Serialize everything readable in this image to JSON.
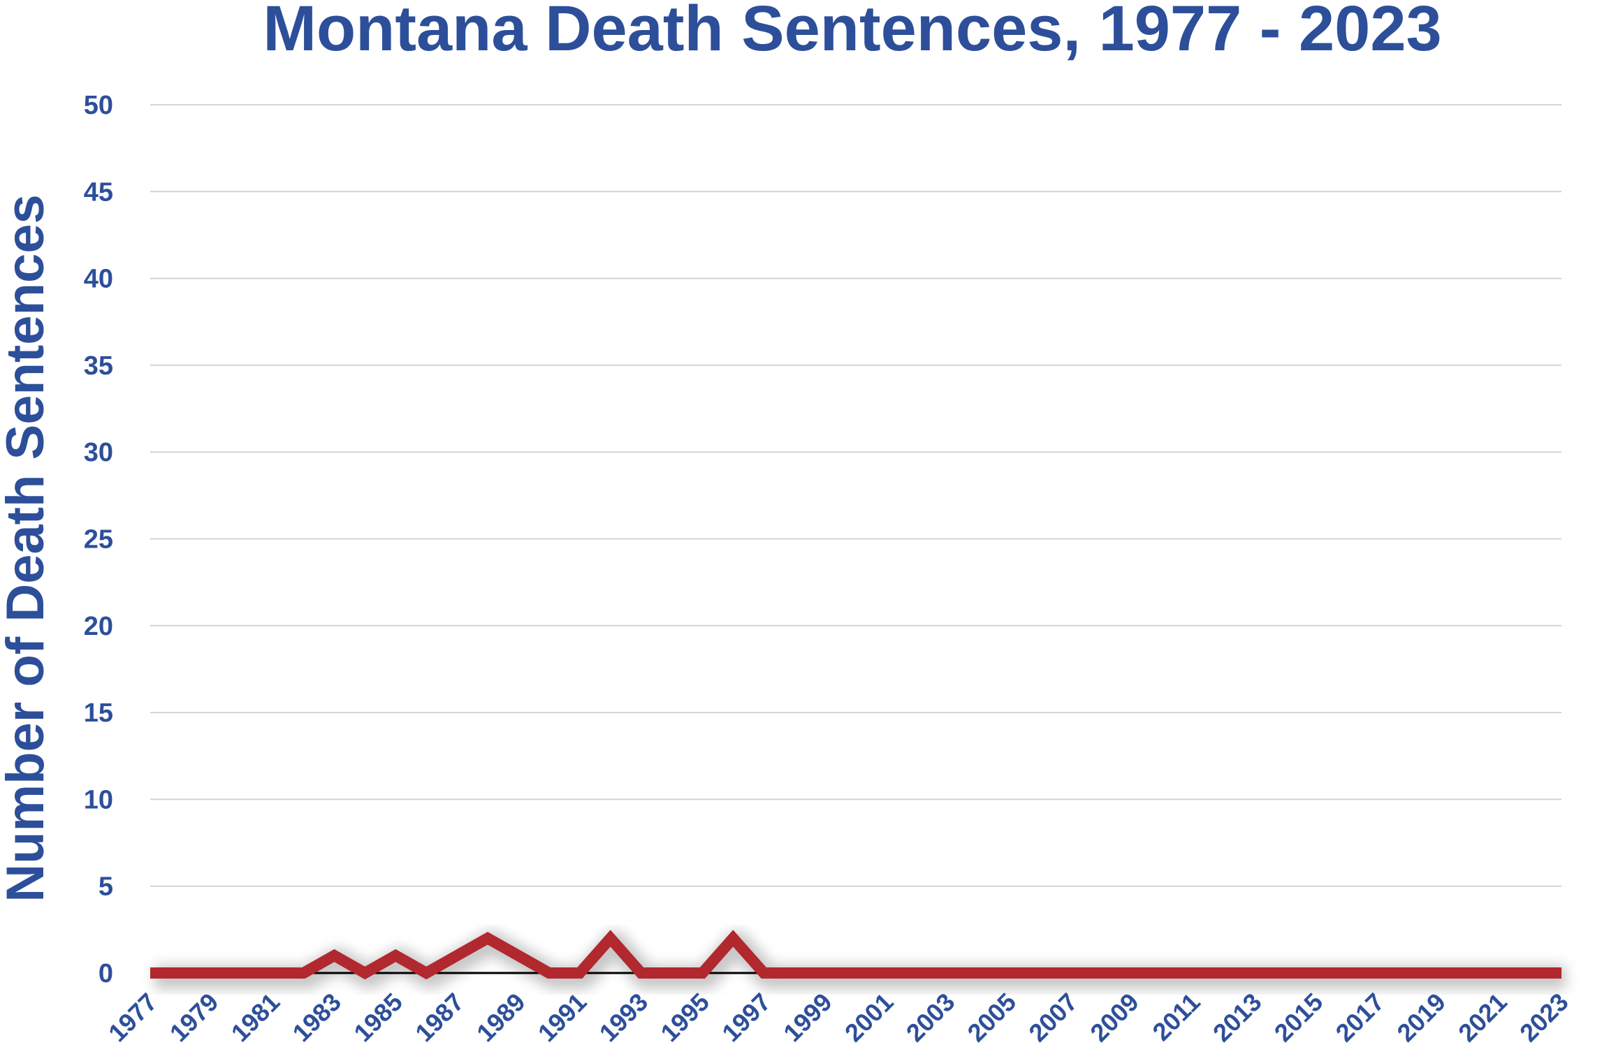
{
  "chart_data": {
    "type": "line",
    "title": "Montana Death Sentences, 1977 - 2023",
    "ylabel": "Number of Death Sentences",
    "xlabel": "",
    "ylim": [
      0,
      50
    ],
    "yticks": [
      0,
      5,
      10,
      15,
      20,
      25,
      30,
      35,
      40,
      45,
      50
    ],
    "x": [
      1977,
      1978,
      1979,
      1980,
      1981,
      1982,
      1983,
      1984,
      1985,
      1986,
      1987,
      1988,
      1989,
      1990,
      1991,
      1992,
      1993,
      1994,
      1995,
      1996,
      1997,
      1998,
      1999,
      2000,
      2001,
      2002,
      2003,
      2004,
      2005,
      2006,
      2007,
      2008,
      2009,
      2010,
      2011,
      2012,
      2013,
      2014,
      2015,
      2016,
      2017,
      2018,
      2019,
      2020,
      2021,
      2022,
      2023
    ],
    "xtick_labels": [
      "1977",
      "1979",
      "1981",
      "1983",
      "1985",
      "1987",
      "1989",
      "1991",
      "1993",
      "1995",
      "1997",
      "1999",
      "2001",
      "2003",
      "2005",
      "2007",
      "2009",
      "2011",
      "2013",
      "2015",
      "2017",
      "2019",
      "2021",
      "2023"
    ],
    "series": [
      {
        "color": "#b1282e",
        "values": [
          0,
          0,
          0,
          0,
          0,
          0,
          1,
          0,
          1,
          0,
          1,
          2,
          1,
          0,
          0,
          2,
          0,
          0,
          0,
          2,
          0,
          0,
          0,
          0,
          0,
          0,
          0,
          0,
          0,
          0,
          0,
          0,
          0,
          0,
          0,
          0,
          0,
          0,
          0,
          0,
          0,
          0,
          0,
          0,
          0,
          0,
          0
        ]
      }
    ],
    "grid": true,
    "legend": "none"
  }
}
